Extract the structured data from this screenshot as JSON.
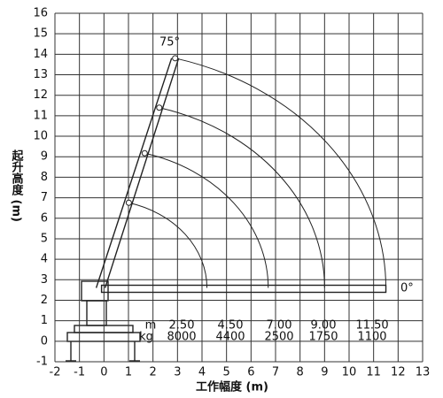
{
  "chart_data": {
    "type": "crane-load",
    "xlim": [
      -2,
      13
    ],
    "ylim": [
      -1,
      16
    ],
    "xticks": [
      -2,
      -1,
      0,
      1,
      2,
      3,
      4,
      5,
      6,
      7,
      8,
      9,
      10,
      11,
      12,
      13
    ],
    "yticks": [
      -1,
      0,
      1,
      2,
      3,
      4,
      5,
      6,
      7,
      8,
      9,
      10,
      11,
      12,
      13,
      14,
      15,
      16
    ],
    "grid": true,
    "x_label": "工作幅度 (m)",
    "y_label": "起升高度 (m)",
    "angle_max_label": "75°",
    "angle_min_label": "0°",
    "table": {
      "radius_unit": "m",
      "load_unit": "kg",
      "radius": [
        "2.50",
        "4.50",
        "7.00",
        "9.00",
        "11.50"
      ],
      "load": [
        8000,
        4400,
        2500,
        1750,
        1100
      ]
    }
  }
}
